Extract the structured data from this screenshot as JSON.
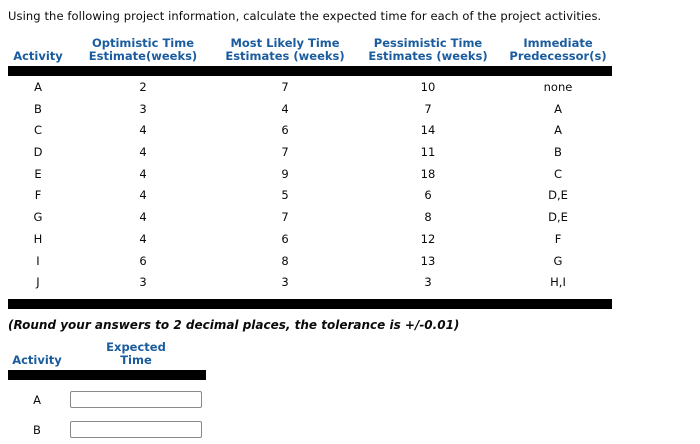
{
  "page": {
    "instruction": "Using the following project information, calculate the expected time for each of the project activities.",
    "rounding_note": "(Round your answers to 2 decimal places, the tolerance is +/-0.01)"
  },
  "colors": {
    "header_blue": "#1B5C9E",
    "bar_black": "#000000"
  },
  "project_table": {
    "headers": [
      {
        "line1": "",
        "line2": "Activity"
      },
      {
        "line1": "Optimistic Time",
        "line2": "Estimate(weeks)"
      },
      {
        "line1": "Most Likely Time",
        "line2": "Estimates (weeks)"
      },
      {
        "line1": "Pessimistic Time",
        "line2": "Estimates (weeks)"
      },
      {
        "line1": "Immediate",
        "line2": "Predecessor(s)"
      }
    ],
    "rows": [
      {
        "activity": "A",
        "optimistic": "2",
        "most_likely": "7",
        "pessimistic": "10",
        "predecessors": "none"
      },
      {
        "activity": "B",
        "optimistic": "3",
        "most_likely": "4",
        "pessimistic": "7",
        "predecessors": "A"
      },
      {
        "activity": "C",
        "optimistic": "4",
        "most_likely": "6",
        "pessimistic": "14",
        "predecessors": "A"
      },
      {
        "activity": "D",
        "optimistic": "4",
        "most_likely": "7",
        "pessimistic": "11",
        "predecessors": "B"
      },
      {
        "activity": "E",
        "optimistic": "4",
        "most_likely": "9",
        "pessimistic": "18",
        "predecessors": "C"
      },
      {
        "activity": "F",
        "optimistic": "4",
        "most_likely": "5",
        "pessimistic": "6",
        "predecessors": "D,E"
      },
      {
        "activity": "G",
        "optimistic": "4",
        "most_likely": "7",
        "pessimistic": "8",
        "predecessors": "D,E"
      },
      {
        "activity": "H",
        "optimistic": "4",
        "most_likely": "6",
        "pessimistic": "12",
        "predecessors": "F"
      },
      {
        "activity": "I",
        "optimistic": "6",
        "most_likely": "8",
        "pessimistic": "13",
        "predecessors": "G"
      },
      {
        "activity": "J",
        "optimistic": "3",
        "most_likely": "3",
        "pessimistic": "3",
        "predecessors": "H,I"
      }
    ]
  },
  "answer_table": {
    "headers": [
      {
        "line1": "",
        "line2": "Activity"
      },
      {
        "line1": "Expected",
        "line2": "Time"
      }
    ],
    "rows": [
      {
        "activity": "A",
        "value": ""
      },
      {
        "activity": "B",
        "value": ""
      }
    ]
  }
}
